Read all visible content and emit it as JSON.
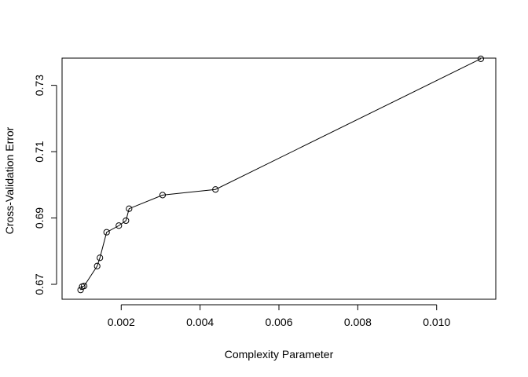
{
  "chart_data": {
    "type": "line",
    "title": "",
    "xlabel": "Complexity Parameter",
    "ylabel": "Cross-Validation Error",
    "xlim": [
      0.0005,
      0.0115
    ],
    "ylim": [
      0.6655,
      0.7382
    ],
    "xticks": [
      0.002,
      0.004,
      0.006,
      0.008,
      0.01
    ],
    "xtick_labels": [
      "0.002",
      "0.004",
      "0.006",
      "0.008",
      "0.010"
    ],
    "yticks": [
      0.67,
      0.69,
      0.71,
      0.73
    ],
    "ytick_labels": [
      "0.67",
      "0.69",
      "0.71",
      "0.73"
    ],
    "grid": false,
    "legend": "none",
    "marker": "open-circle",
    "series": [
      {
        "color": "#000000",
        "points": [
          {
            "x": 0.00097,
            "y": 0.6683
          },
          {
            "x": 0.00101,
            "y": 0.6693
          },
          {
            "x": 0.00106,
            "y": 0.6695
          },
          {
            "x": 0.00139,
            "y": 0.6755
          },
          {
            "x": 0.00146,
            "y": 0.678
          },
          {
            "x": 0.00163,
            "y": 0.6857
          },
          {
            "x": 0.00194,
            "y": 0.6877
          },
          {
            "x": 0.00212,
            "y": 0.6892
          },
          {
            "x": 0.0022,
            "y": 0.6928
          },
          {
            "x": 0.00305,
            "y": 0.6969
          },
          {
            "x": 0.00439,
            "y": 0.6986
          },
          {
            "x": 0.01112,
            "y": 0.738
          }
        ]
      }
    ]
  }
}
